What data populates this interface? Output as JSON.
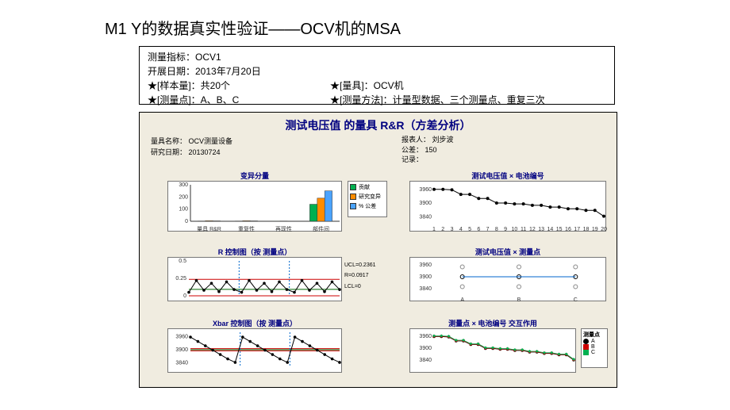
{
  "title": "M1   Y的数据真实性验证——OCV机的MSA",
  "info": {
    "metric": "测量指标：OCV1",
    "date": "开展日期：2013年7月20日",
    "sample": "★[样本量]：共20个",
    "gage": "★[量具]：OCV机",
    "point": "★[测量点]：A、B、C",
    "method": "★[测量方法]：计量型数据、三个测量点、重复三次"
  },
  "chart": {
    "title": "测试电压值  的量具 R&R（方差分析）",
    "meta_left": {
      "l1": "量具名称：  OCV测量设备",
      "l2": "研究日期：  20130724"
    },
    "meta_right": {
      "l1": "报表人：  刘步波",
      "l2": "公差：  150",
      "l3": "记录："
    },
    "panel_bg": "#f0ece0",
    "sub1": {
      "title": "变异分量",
      "cats": [
        "量具 R&R",
        "重复性",
        "再现性",
        "部件间"
      ],
      "series": [
        {
          "name": "贡献率",
          "color": "#00b050",
          "vals": [
            2,
            2,
            1,
            140
          ]
        },
        {
          "name": "研究变异",
          "color": "#ff8c00",
          "vals": [
            4,
            4,
            2,
            190
          ]
        },
        {
          "name": "公差率",
          "color": "#4aa3ff",
          "vals": [
            3,
            3,
            1.5,
            250
          ]
        }
      ],
      "ylim": [
        0,
        300
      ],
      "ytick": 100,
      "legend": [
        "贡献",
        "研究变异",
        "% 公差"
      ]
    },
    "sub2": {
      "title": "测试电压值 × 电池编号",
      "ylim": [
        3820,
        3980
      ],
      "yticks": [
        3840,
        3900,
        3960
      ],
      "xcount": 20,
      "steps": [
        3960,
        3960,
        3958,
        3938,
        3938,
        3920,
        3920,
        3900,
        3900,
        3896,
        3896,
        3890,
        3890,
        3882,
        3882,
        3875,
        3875,
        3868,
        3868,
        3842
      ],
      "line_color": "#000",
      "marker_color": "#000"
    },
    "sub3": {
      "title": "R 控制图（按 测量点）",
      "ylim": [
        0,
        0.5
      ],
      "yticks": [
        0,
        0.25,
        0.5
      ],
      "groups": 3,
      "pts_per": 7,
      "ucl": 0.2361,
      "mean": 0.0917,
      "lcl": 0,
      "ucl_label": "UCL=0.2361",
      "r_label": "R=0.0917",
      "lcl_label": "LCL=0",
      "line_color": "#cc0000",
      "data_color": "#000"
    },
    "sub4": {
      "title": "测试电压值 × 测量点",
      "ylim": [
        3820,
        3980
      ],
      "yticks": [
        3840,
        3900,
        3960
      ],
      "xcats": [
        "A",
        "B",
        "C"
      ],
      "vals": [
        3900,
        3900,
        3900
      ],
      "marker_color": "#000",
      "hollow": "#888"
    },
    "sub5": {
      "title": "Xbar 控制图（按 测量点）",
      "ylim": [
        3820,
        3980
      ],
      "yticks": [
        3840,
        3900,
        3960
      ],
      "groups": 3,
      "pts_per": 7,
      "line_color": "#cc0000",
      "data_color": "#000",
      "pattern": [
        3958,
        3938,
        3918,
        3898,
        3878,
        3858,
        3842
      ]
    },
    "sub6": {
      "title": "测量点 × 电池编号 交互作用",
      "ylim": [
        3820,
        3980
      ],
      "yticks": [
        3840,
        3900,
        3960
      ],
      "xcount": 20,
      "series": [
        {
          "name": "A",
          "color": "#000",
          "marker": "circle"
        },
        {
          "name": "B",
          "color": "#cc0000",
          "marker": "square"
        },
        {
          "name": "C",
          "color": "#00b050",
          "marker": "diamond"
        }
      ],
      "legend_title": "测量点",
      "vals": [
        3960,
        3960,
        3958,
        3938,
        3938,
        3920,
        3920,
        3900,
        3900,
        3896,
        3896,
        3890,
        3890,
        3882,
        3882,
        3875,
        3875,
        3868,
        3868,
        3842
      ]
    }
  }
}
